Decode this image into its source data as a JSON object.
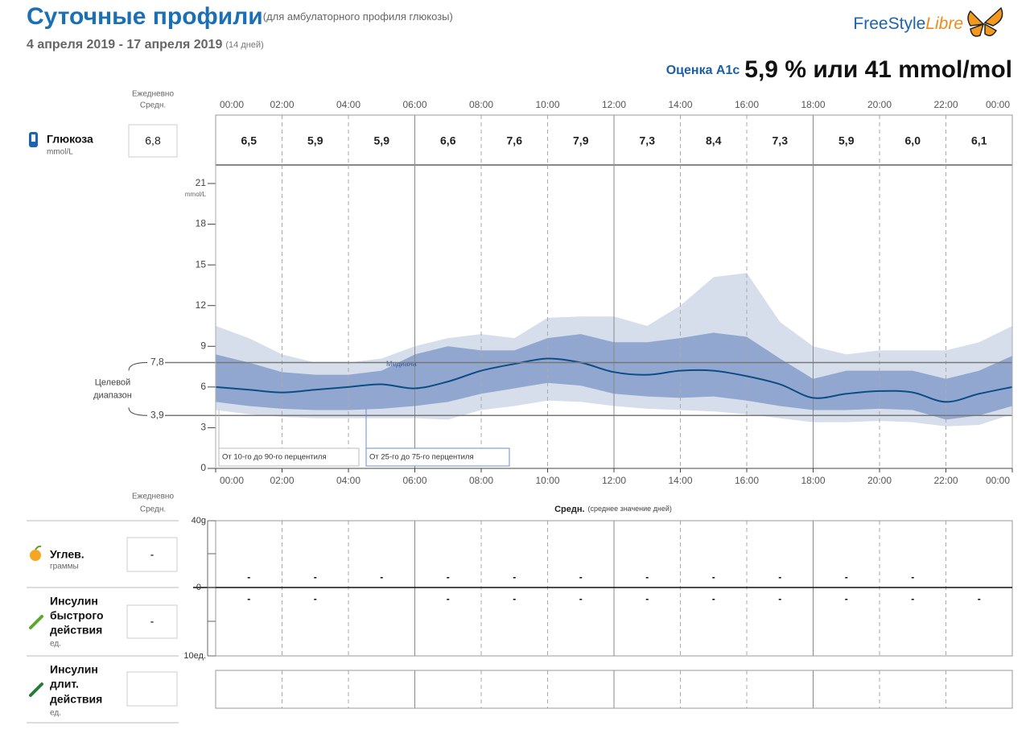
{
  "header": {
    "title": "Суточные профили",
    "subtitle": "(для амбулаторного профиля глюкозы)",
    "dates": "4 апреля 2019 - 17 апреля 2019",
    "days": "(14 дней)",
    "logo": [
      "FreeStyle",
      "Libre"
    ]
  },
  "a1c": {
    "label": "Оценка A1c",
    "value": "5,9 % или 41 mmol/mol"
  },
  "glucose_row": {
    "daily_avg_label": [
      "Ежедневно",
      "Средн."
    ],
    "name": "Глюкоза",
    "unit": "mmol/L",
    "daily_avg": "6,8",
    "values": [
      "6,5",
      "5,9",
      "5,9",
      "6,6",
      "7,6",
      "7,9",
      "7,3",
      "8,4",
      "7,3",
      "5,9",
      "6,0",
      "6,1"
    ]
  },
  "chart_data": {
    "type": "area",
    "y_unit": "mmol/L",
    "x": [
      0,
      1,
      2,
      3,
      4,
      5,
      6,
      7,
      8,
      9,
      10,
      11,
      12,
      13,
      14,
      15,
      16,
      17,
      18,
      19,
      20,
      21,
      22,
      23,
      24
    ],
    "xlim": [
      0,
      24
    ],
    "xticks": [
      {
        "value": 0,
        "label": "00:00"
      },
      {
        "value": 2,
        "label": "02:00"
      },
      {
        "value": 4,
        "label": "04:00"
      },
      {
        "value": 6,
        "label": "06:00"
      },
      {
        "value": 8,
        "label": "08:00"
      },
      {
        "value": 10,
        "label": "10:00"
      },
      {
        "value": 12,
        "label": "12:00"
      },
      {
        "value": 14,
        "label": "14:00"
      },
      {
        "value": 16,
        "label": "16:00"
      },
      {
        "value": 18,
        "label": "18:00"
      },
      {
        "value": 20,
        "label": "20:00"
      },
      {
        "value": 22,
        "label": "22:00"
      },
      {
        "value": 24,
        "label": "00:00"
      }
    ],
    "ylim": [
      0,
      21
    ],
    "yticks": [
      0,
      3,
      6,
      9,
      12,
      15,
      18,
      21
    ],
    "target": {
      "label": [
        "Целевой",
        "диапазон"
      ],
      "lines": [
        {
          "value": 7.8,
          "label": "7,8"
        },
        {
          "value": 3.9,
          "label": "3,9"
        }
      ]
    },
    "bands": [
      {
        "name": "От 10-го до 90-го перцентиля",
        "color": "#d6deec",
        "high": [
          10.5,
          9.6,
          8.4,
          7.8,
          7.8,
          8.1,
          9.0,
          9.6,
          9.9,
          9.6,
          11.1,
          11.2,
          11.2,
          10.5,
          12.0,
          14.1,
          14.4,
          10.8,
          9.0,
          8.4,
          8.7,
          8.7,
          8.7,
          9.3,
          10.5
        ],
        "low": [
          4.3,
          4.0,
          3.8,
          3.7,
          3.7,
          3.7,
          3.7,
          3.6,
          4.3,
          4.6,
          5.0,
          4.9,
          4.6,
          4.4,
          4.3,
          4.2,
          4.0,
          3.7,
          3.4,
          3.4,
          3.5,
          3.4,
          3.1,
          3.2,
          4.0
        ]
      },
      {
        "name": "От 25-го до 75-го перцентиля",
        "color": "#91a7cf",
        "high": [
          8.4,
          7.8,
          7.1,
          6.9,
          6.9,
          7.2,
          8.4,
          9.0,
          8.7,
          8.7,
          9.6,
          9.9,
          9.3,
          9.3,
          9.6,
          10.0,
          9.7,
          8.1,
          6.6,
          7.2,
          7.2,
          7.2,
          6.6,
          7.2,
          8.3
        ],
        "low": [
          4.9,
          4.6,
          4.4,
          4.3,
          4.3,
          4.4,
          4.6,
          4.9,
          5.5,
          5.9,
          6.3,
          6.1,
          5.5,
          5.3,
          5.2,
          5.3,
          5.0,
          4.6,
          4.3,
          4.3,
          4.4,
          4.3,
          3.6,
          3.9,
          4.6
        ]
      }
    ],
    "series": [
      {
        "name": "Медиана",
        "color": "#0d4d85",
        "values": [
          6.0,
          5.8,
          5.6,
          5.8,
          6.0,
          6.2,
          5.9,
          6.4,
          7.2,
          7.7,
          8.1,
          7.8,
          7.1,
          6.9,
          7.2,
          7.2,
          6.8,
          6.2,
          5.2,
          5.5,
          5.7,
          5.6,
          4.9,
          5.5,
          6.0
        ]
      }
    ]
  },
  "bottom": {
    "daily_avg_label": [
      "Ежедневно",
      "Средн."
    ],
    "avg_title": "Средн.",
    "avg_note": "(среднее значение дней)",
    "scale": [
      "40g",
      "0",
      "10ед."
    ],
    "carbs": {
      "name": "Углев.",
      "unit": "граммы",
      "daily_avg": "-",
      "slots": [
        "-",
        "-",
        "-",
        "-",
        "-",
        "-",
        "-",
        "-",
        "-",
        "-",
        "-",
        null
      ]
    },
    "rapid": {
      "name": [
        "Инсулин",
        "быстрого",
        "действия"
      ],
      "unit": "ед.",
      "daily_avg": "-",
      "slots": [
        "-",
        "-",
        null,
        "-",
        "-",
        "-",
        "-",
        "-",
        "-",
        "-",
        "-",
        "-"
      ]
    },
    "long": {
      "name": [
        "Инсулин",
        "длит.",
        "действия"
      ],
      "unit": "ед."
    }
  }
}
